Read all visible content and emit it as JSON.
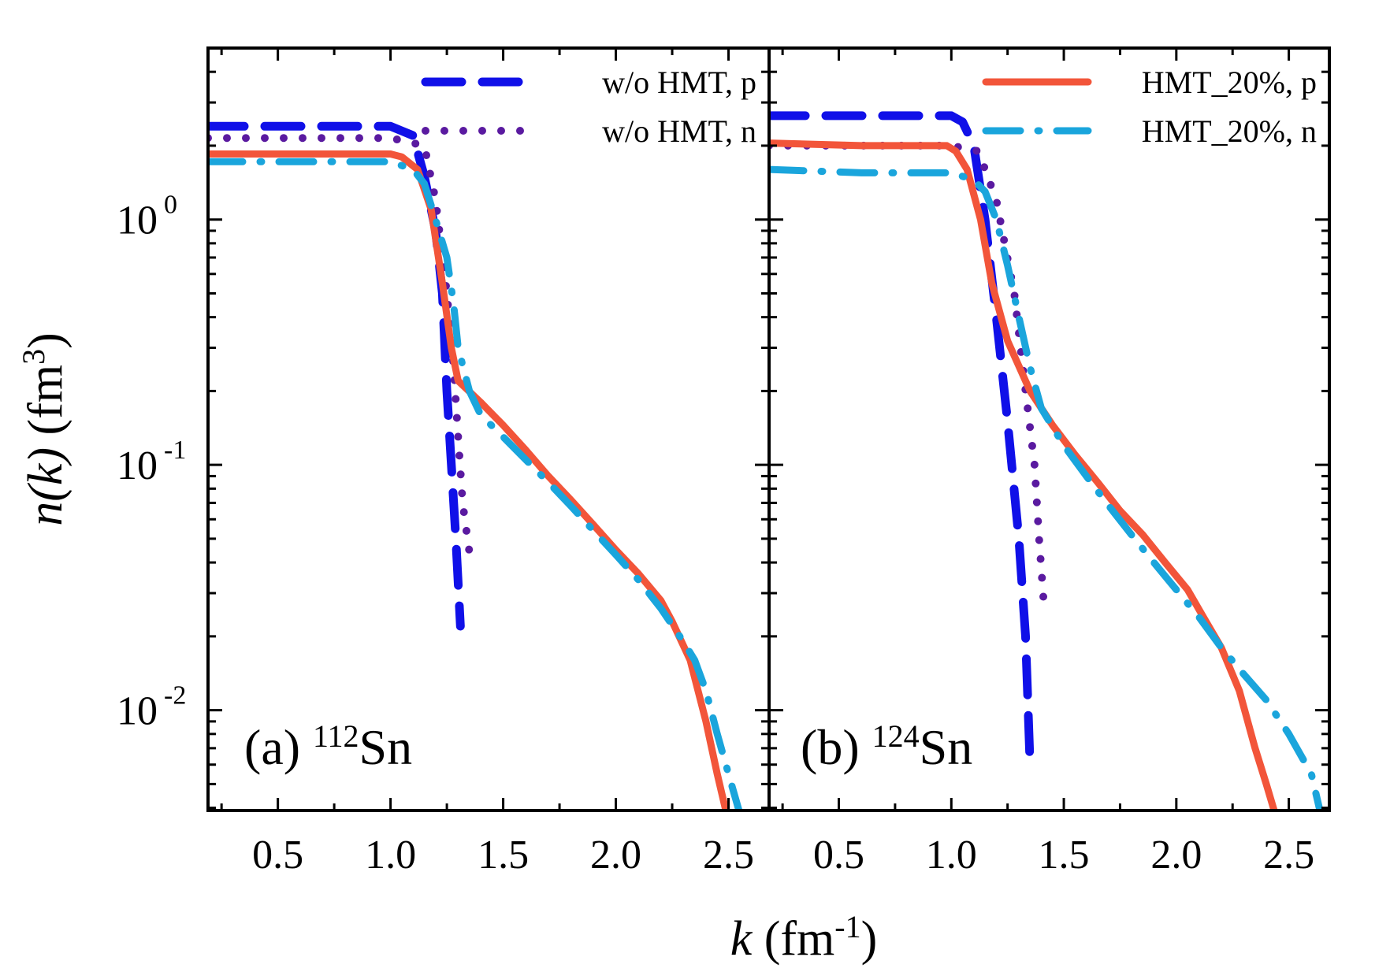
{
  "chart_data": {
    "type": "line",
    "xlabel": {
      "main": "k",
      "unit": " (fm",
      "exp": "-1",
      "close": ")"
    },
    "ylabel": {
      "main": "n(k)",
      "unit": " (fm",
      "exp": "3",
      "close": ")"
    },
    "x_scale": "linear",
    "y_scale": "log",
    "xlim": [
      0.19,
      2.68
    ],
    "ylim": [
      0.0039,
      5.0
    ],
    "x_ticks": [
      0.5,
      1.0,
      1.5,
      2.0,
      2.5
    ],
    "x_tick_labels": [
      "0.5",
      "1.0",
      "1.5",
      "2.0",
      "2.5"
    ],
    "y_ticks": [
      {
        "value": 1,
        "base": "10",
        "exp": "0"
      },
      {
        "value": 0.1,
        "base": "10",
        "exp": "-1"
      },
      {
        "value": 0.01,
        "base": "10",
        "exp": "-2"
      }
    ],
    "grid": false,
    "colors": {
      "wo_p": "#1010e8",
      "wo_n": "#5a1aa0",
      "hmt_p": "#f2553a",
      "hmt_n": "#1aa5dc"
    },
    "panels": [
      {
        "label": {
          "prefix": "(a) ",
          "mass": "112",
          "element": "Sn"
        },
        "legend_position": "top-right",
        "legend": [
          {
            "name": "w/o HMT, p",
            "series": "wo_p"
          },
          {
            "name": "w/o HMT, n",
            "series": "wo_n"
          }
        ],
        "series": [
          {
            "key": "wo_p",
            "x": [
              0.19,
              0.6,
              1.0,
              1.1,
              1.15,
              1.2,
              1.23,
              1.25,
              1.27,
              1.29,
              1.31
            ],
            "y": [
              2.4,
              2.4,
              2.4,
              2.2,
              1.5,
              0.9,
              0.5,
              0.2,
              0.1,
              0.05,
              0.022
            ]
          },
          {
            "key": "wo_n",
            "x": [
              0.19,
              0.6,
              1.0,
              1.15,
              1.2,
              1.25,
              1.28,
              1.3,
              1.32,
              1.35
            ],
            "y": [
              2.15,
              2.15,
              2.15,
              2.0,
              1.2,
              0.5,
              0.25,
              0.13,
              0.07,
              0.044
            ]
          },
          {
            "key": "hmt_p",
            "x": [
              0.19,
              0.6,
              1.0,
              1.05,
              1.12,
              1.18,
              1.23,
              1.27,
              1.3,
              1.4,
              1.5,
              1.6,
              1.7,
              1.8,
              1.9,
              2.0,
              2.1,
              2.2,
              2.25,
              2.33,
              2.4,
              2.45,
              2.5
            ],
            "y": [
              1.85,
              1.85,
              1.85,
              1.8,
              1.6,
              1.1,
              0.55,
              0.3,
              0.22,
              0.18,
              0.145,
              0.115,
              0.09,
              0.072,
              0.057,
              0.045,
              0.036,
              0.028,
              0.023,
              0.016,
              0.009,
              0.0055,
              0.0035
            ]
          },
          {
            "key": "hmt_n",
            "x": [
              0.19,
              0.6,
              1.0,
              1.1,
              1.15,
              1.2,
              1.25,
              1.28,
              1.3,
              1.35,
              1.4,
              1.5,
              1.6,
              1.7,
              1.8,
              1.9,
              2.0,
              2.1,
              2.2,
              2.3,
              2.35,
              2.4,
              2.45,
              2.5,
              2.55
            ],
            "y": [
              1.72,
              1.72,
              1.72,
              1.6,
              1.4,
              1.0,
              0.7,
              0.45,
              0.3,
              0.2,
              0.16,
              0.13,
              0.105,
              0.085,
              0.068,
              0.054,
              0.043,
              0.034,
              0.026,
              0.019,
              0.016,
              0.012,
              0.008,
              0.0055,
              0.0038
            ]
          }
        ]
      },
      {
        "label": {
          "prefix": "(b) ",
          "mass": "124",
          "element": "Sn"
        },
        "legend_position": "top-right",
        "legend": [
          {
            "name": "HMT_20%, p",
            "series": "hmt_p"
          },
          {
            "name": "HMT_20%, n",
            "series": "hmt_n"
          }
        ],
        "series": [
          {
            "key": "wo_p",
            "x": [
              0.19,
              0.6,
              1.0,
              1.05,
              1.1,
              1.15,
              1.2,
              1.25,
              1.3,
              1.33,
              1.35
            ],
            "y": [
              2.65,
              2.65,
              2.65,
              2.5,
              2.0,
              1.0,
              0.4,
              0.15,
              0.05,
              0.02,
              0.006
            ]
          },
          {
            "key": "wo_n",
            "x": [
              0.19,
              0.6,
              1.0,
              1.12,
              1.2,
              1.28,
              1.33,
              1.37,
              1.39,
              1.41
            ],
            "y": [
              2.0,
              2.0,
              2.0,
              1.9,
              1.2,
              0.5,
              0.2,
              0.1,
              0.05,
              0.028
            ]
          },
          {
            "key": "hmt_p",
            "x": [
              0.19,
              0.6,
              0.98,
              1.02,
              1.07,
              1.13,
              1.18,
              1.25,
              1.35,
              1.45,
              1.55,
              1.65,
              1.75,
              1.85,
              1.95,
              2.05,
              2.12,
              2.2,
              2.28,
              2.35,
              2.4,
              2.45
            ],
            "y": [
              2.05,
              2.0,
              2.0,
              1.9,
              1.6,
              1.0,
              0.55,
              0.32,
              0.2,
              0.145,
              0.11,
              0.085,
              0.065,
              0.052,
              0.04,
              0.031,
              0.024,
              0.018,
              0.012,
              0.007,
              0.005,
              0.0035
            ]
          },
          {
            "key": "hmt_n",
            "x": [
              0.19,
              0.6,
              1.0,
              1.1,
              1.15,
              1.2,
              1.25,
              1.3,
              1.35,
              1.4,
              1.5,
              1.6,
              1.7,
              1.8,
              1.9,
              2.0,
              2.1,
              2.2,
              2.3,
              2.4,
              2.5,
              2.6,
              2.65
            ],
            "y": [
              1.6,
              1.55,
              1.55,
              1.45,
              1.3,
              1.0,
              0.65,
              0.4,
              0.25,
              0.17,
              0.12,
              0.09,
              0.068,
              0.052,
              0.04,
              0.031,
              0.024,
              0.018,
              0.014,
              0.011,
              0.008,
              0.0055,
              0.0035
            ]
          }
        ]
      }
    ]
  }
}
